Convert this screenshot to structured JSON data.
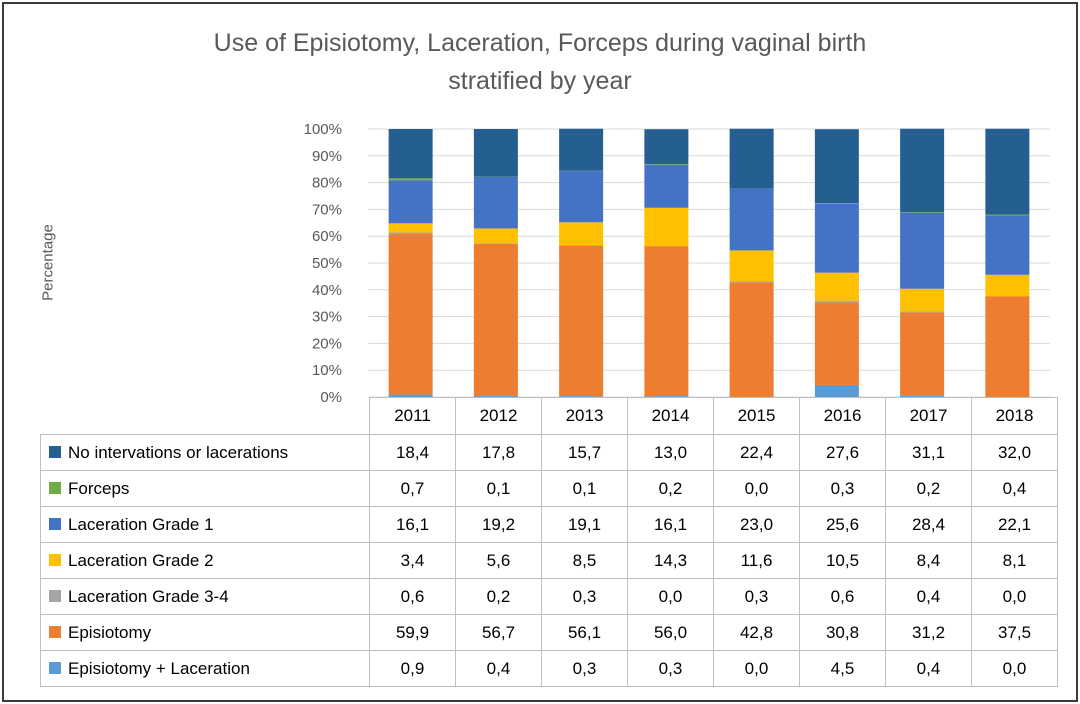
{
  "chart_data": {
    "type": "bar",
    "stacked": true,
    "title_lines": [
      "Use of Episiotomy, Laceration, Forceps during vaginal birth",
      "stratified by year"
    ],
    "ylabel": "Percentage",
    "ylim": [
      0,
      100
    ],
    "yticks": [
      "0%",
      "10%",
      "20%",
      "30%",
      "40%",
      "50%",
      "60%",
      "70%",
      "80%",
      "90%",
      "100%"
    ],
    "categories": [
      "2011",
      "2012",
      "2013",
      "2014",
      "2015",
      "2016",
      "2017",
      "2018"
    ],
    "series": [
      {
        "name": "No intervations or lacerations",
        "color": "#255e91",
        "values": [
          18.4,
          17.8,
          15.7,
          13.0,
          22.4,
          27.6,
          31.1,
          32.0
        ],
        "labels": [
          "18,4",
          "17,8",
          "15,7",
          "13,0",
          "22,4",
          "27,6",
          "31,1",
          "32,0"
        ]
      },
      {
        "name": "Forceps",
        "color": "#70ad47",
        "values": [
          0.7,
          0.1,
          0.1,
          0.2,
          0.0,
          0.3,
          0.2,
          0.4
        ],
        "labels": [
          "0,7",
          "0,1",
          "0,1",
          "0,2",
          "0,0",
          "0,3",
          "0,2",
          "0,4"
        ]
      },
      {
        "name": "Laceration Grade 1",
        "color": "#4472c4",
        "values": [
          16.1,
          19.2,
          19.1,
          16.1,
          23.0,
          25.6,
          28.4,
          22.1
        ],
        "labels": [
          "16,1",
          "19,2",
          "19,1",
          "16,1",
          "23,0",
          "25,6",
          "28,4",
          "22,1"
        ]
      },
      {
        "name": "Laceration Grade 2",
        "color": "#ffc000",
        "values": [
          3.4,
          5.6,
          8.5,
          14.3,
          11.6,
          10.5,
          8.4,
          8.1
        ],
        "labels": [
          "3,4",
          "5,6",
          "8,5",
          "14,3",
          "11,6",
          "10,5",
          "8,4",
          "8,1"
        ]
      },
      {
        "name": "Laceration Grade 3-4",
        "color": "#a5a5a5",
        "values": [
          0.6,
          0.2,
          0.3,
          0.0,
          0.3,
          0.6,
          0.4,
          0.0
        ],
        "labels": [
          "0,6",
          "0,2",
          "0,3",
          "0,0",
          "0,3",
          "0,6",
          "0,4",
          "0,0"
        ]
      },
      {
        "name": "Episiotomy",
        "color": "#ed7d31",
        "values": [
          59.9,
          56.7,
          56.1,
          56.0,
          42.8,
          30.8,
          31.2,
          37.5
        ],
        "labels": [
          "59,9",
          "56,7",
          "56,1",
          "56,0",
          "42,8",
          "30,8",
          "31,2",
          "37,5"
        ]
      },
      {
        "name": "Episiotomy + Laceration",
        "color": "#5b9bd5",
        "values": [
          0.9,
          0.4,
          0.3,
          0.3,
          0.0,
          4.5,
          0.4,
          0.0
        ],
        "labels": [
          "0,9",
          "0,4",
          "0,3",
          "0,3",
          "0,0",
          "4,5",
          "0,4",
          "0,0"
        ]
      }
    ],
    "stack_order_bottom_to_top": [
      6,
      5,
      4,
      3,
      2,
      1,
      0
    ],
    "grid": true,
    "legend": "data-table-below"
  }
}
